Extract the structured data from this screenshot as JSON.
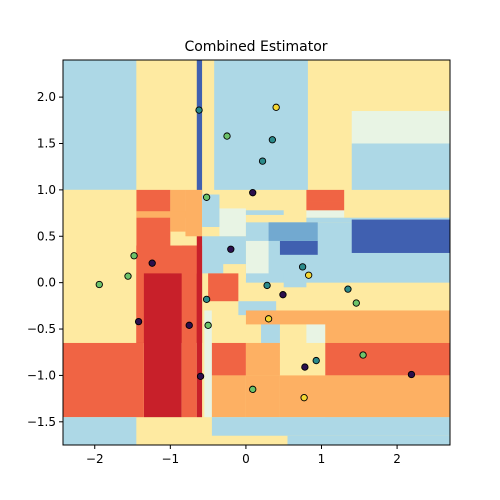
{
  "chart_data": {
    "type": "scatter",
    "title": "Combined Estimator",
    "xlabel": "",
    "ylabel": "",
    "xlim": [
      -2.42,
      2.7
    ],
    "ylim": [
      -1.75,
      2.4
    ],
    "xticks": [
      "−2",
      "−1",
      "0",
      "1",
      "2"
    ],
    "xtick_values": [
      -2,
      -1,
      0,
      1,
      2
    ],
    "yticks": [
      "−1.5",
      "−1.0",
      "−0.5",
      "0.0",
      "0.5",
      "1.0",
      "1.5",
      "2.0"
    ],
    "ytick_values": [
      -1.5,
      -1.0,
      -0.5,
      0.0,
      0.5,
      1.0,
      1.5,
      2.0
    ],
    "grid": false,
    "colors": {
      "class_0": "#2b0f4c",
      "class_1": "#2a8a8a",
      "class_2": "#6cc36a",
      "class_3": "#f5d833",
      "region_red_dark": "#c8202a",
      "region_red": "#f06444",
      "region_orange": "#fdb063",
      "region_yellow": "#feeaa1",
      "region_pale": "#e8f4e4",
      "region_lightblue": "#add8e6",
      "region_midblue": "#72a9d0",
      "region_darkblue": "#4060b0"
    },
    "decision_regions": [
      {
        "x0": -2.42,
        "x1": 2.7,
        "y0": -1.75,
        "y1": 2.4,
        "color": "region_yellow"
      },
      {
        "x0": -2.42,
        "x1": -1.45,
        "y0": 1.0,
        "y1": 2.4,
        "color": "region_lightblue"
      },
      {
        "x0": -0.42,
        "x1": 0.82,
        "y0": 1.0,
        "y1": 2.4,
        "color": "region_lightblue"
      },
      {
        "x0": -0.65,
        "x1": -0.58,
        "y0": 0.95,
        "y1": 2.4,
        "color": "region_darkblue"
      },
      {
        "x0": 1.4,
        "x1": 2.7,
        "y0": 1.5,
        "y1": 1.85,
        "color": "region_pale"
      },
      {
        "x0": 1.4,
        "x1": 2.7,
        "y0": 1.0,
        "y1": 1.5,
        "color": "region_lightblue"
      },
      {
        "x0": -1.45,
        "x1": -1.0,
        "y0": 0.4,
        "y1": 1.0,
        "color": "region_red"
      },
      {
        "x0": -1.0,
        "x1": -0.8,
        "y0": 0.55,
        "y1": 1.0,
        "color": "region_orange"
      },
      {
        "x0": -2.42,
        "x1": -1.45,
        "y0": 0.7,
        "y1": 0.77,
        "color": "region_orange"
      },
      {
        "x0": -1.45,
        "x1": -0.8,
        "y0": 0.7,
        "y1": 0.77,
        "color": "region_orange"
      },
      {
        "x0": -0.8,
        "x1": -0.58,
        "y0": 0.5,
        "y1": 1.0,
        "color": "region_orange"
      },
      {
        "x0": -0.58,
        "x1": -0.35,
        "y0": 0.6,
        "y1": 0.95,
        "color": "region_lightblue"
      },
      {
        "x0": -0.35,
        "x1": 0.0,
        "y0": 0.5,
        "y1": 0.8,
        "color": "region_pale"
      },
      {
        "x0": 0.0,
        "x1": 0.5,
        "y0": 0.73,
        "y1": 0.78,
        "color": "region_lightblue"
      },
      {
        "x0": 0.8,
        "x1": 1.3,
        "y0": 0.7,
        "y1": 0.78,
        "color": "region_pale"
      },
      {
        "x0": 0.8,
        "x1": 1.3,
        "y0": 0.78,
        "y1": 0.88,
        "color": "region_red"
      },
      {
        "x0": 0.8,
        "x1": 1.3,
        "y0": 0.88,
        "y1": 1.0,
        "color": "region_red"
      },
      {
        "x0": 0.8,
        "x1": 2.7,
        "y0": 0.65,
        "y1": 0.7,
        "color": "region_lightblue"
      },
      {
        "x0": 0.0,
        "x1": 2.7,
        "y0": 0.0,
        "y1": 0.65,
        "color": "region_lightblue"
      },
      {
        "x0": 1.4,
        "x1": 2.7,
        "y0": 0.32,
        "y1": 0.68,
        "color": "region_darkblue"
      },
      {
        "x0": 0.45,
        "x1": 0.95,
        "y0": 0.3,
        "y1": 0.45,
        "color": "region_darkblue"
      },
      {
        "x0": 0.3,
        "x1": 0.95,
        "y0": 0.45,
        "y1": 0.65,
        "color": "region_midblue"
      },
      {
        "x0": 0.0,
        "x1": 0.3,
        "y0": 0.1,
        "y1": 0.45,
        "color": "region_pale"
      },
      {
        "x0": -0.58,
        "x1": 0.0,
        "y0": 0.1,
        "y1": 0.5,
        "color": "region_lightblue"
      },
      {
        "x0": -0.3,
        "x1": 0.0,
        "y0": 0.05,
        "y1": 0.2,
        "color": "region_yellow"
      },
      {
        "x0": -1.45,
        "x1": -0.58,
        "y0": 0.1,
        "y1": 0.4,
        "color": "region_red"
      },
      {
        "x0": -1.45,
        "x1": -0.58,
        "y0": -0.65,
        "y1": 0.1,
        "color": "region_red_dark"
      },
      {
        "x0": -1.45,
        "x1": -1.0,
        "y0": -0.65,
        "y1": 0.1,
        "color": "region_red_dark"
      },
      {
        "x0": -2.42,
        "x1": -1.45,
        "y0": -0.65,
        "y1": 1.0,
        "color": "region_yellow"
      },
      {
        "x0": -1.45,
        "x1": -1.0,
        "y0": -0.65,
        "y1": 0.4,
        "color": "region_red"
      },
      {
        "x0": -1.35,
        "x1": -0.85,
        "y0": -1.45,
        "y1": 0.1,
        "color": "region_red_dark"
      },
      {
        "x0": -0.85,
        "x1": -0.65,
        "y0": -1.45,
        "y1": 0.4,
        "color": "region_red"
      },
      {
        "x0": -0.65,
        "x1": -0.58,
        "y0": -1.45,
        "y1": 0.5,
        "color": "region_red_dark"
      },
      {
        "x0": -2.42,
        "x1": -1.35,
        "y0": -1.45,
        "y1": -0.65,
        "color": "region_red"
      },
      {
        "x0": -0.55,
        "x1": -0.45,
        "y0": -1.45,
        "y1": -0.3,
        "color": "region_pale"
      },
      {
        "x0": -0.45,
        "x1": 0.3,
        "y0": -0.65,
        "y1": -0.3,
        "color": "region_yellow"
      },
      {
        "x0": -0.5,
        "x1": -0.1,
        "y0": -0.2,
        "y1": 0.1,
        "color": "region_red"
      },
      {
        "x0": -0.1,
        "x1": 0.4,
        "y0": -0.35,
        "y1": -0.2,
        "color": "region_lightblue"
      },
      {
        "x0": 0.2,
        "x1": 0.45,
        "y0": -0.65,
        "y1": -0.35,
        "color": "region_lightblue"
      },
      {
        "x0": 0.8,
        "x1": 1.05,
        "y0": -0.65,
        "y1": -0.35,
        "color": "region_pale"
      },
      {
        "x0": 0.5,
        "x1": 0.8,
        "y0": -0.05,
        "y1": 0.1,
        "color": "region_lightblue"
      },
      {
        "x0": 0.0,
        "x1": 2.7,
        "y0": -0.45,
        "y1": -0.3,
        "color": "region_orange"
      },
      {
        "x0": 1.05,
        "x1": 2.7,
        "y0": -0.65,
        "y1": -0.3,
        "color": "region_orange"
      },
      {
        "x0": -0.45,
        "x1": 0.0,
        "y0": -1.0,
        "y1": -0.65,
        "color": "region_red"
      },
      {
        "x0": 0.0,
        "x1": 0.45,
        "y0": -1.0,
        "y1": -0.65,
        "color": "region_orange"
      },
      {
        "x0": 1.05,
        "x1": 2.7,
        "y0": -1.0,
        "y1": -0.65,
        "color": "region_red"
      },
      {
        "x0": -0.45,
        "x1": 0.0,
        "y0": -1.45,
        "y1": -1.0,
        "color": "region_orange"
      },
      {
        "x0": 0.45,
        "x1": 2.7,
        "y0": -1.45,
        "y1": -1.0,
        "color": "region_orange"
      },
      {
        "x0": 0.0,
        "x1": 0.45,
        "y0": -1.45,
        "y1": -1.0,
        "color": "region_orange"
      },
      {
        "x0": 1.05,
        "x1": 2.7,
        "y0": -1.45,
        "y1": -1.0,
        "color": "region_orange"
      },
      {
        "x0": -2.42,
        "x1": -1.45,
        "y0": -1.75,
        "y1": -1.45,
        "color": "region_lightblue"
      },
      {
        "x0": -0.55,
        "x1": 0.55,
        "y0": -1.75,
        "y1": -1.65,
        "color": "region_yellow"
      },
      {
        "x0": -0.45,
        "x1": 2.7,
        "y0": -1.65,
        "y1": -1.45,
        "color": "region_lightblue"
      },
      {
        "x0": 0.55,
        "x1": 2.7,
        "y0": -1.75,
        "y1": -1.65,
        "color": "region_lightblue"
      }
    ],
    "points": [
      {
        "x": -0.62,
        "y": 1.86,
        "class": 1
      },
      {
        "x": 0.4,
        "y": 1.89,
        "class": 3
      },
      {
        "x": -0.25,
        "y": 1.58,
        "class": 2
      },
      {
        "x": 0.35,
        "y": 1.54,
        "class": 1
      },
      {
        "x": 0.22,
        "y": 1.31,
        "class": 1
      },
      {
        "x": 0.09,
        "y": 0.97,
        "class": 0
      },
      {
        "x": -0.52,
        "y": 0.92,
        "class": 2
      },
      {
        "x": -0.2,
        "y": 0.36,
        "class": 0
      },
      {
        "x": -1.48,
        "y": 0.29,
        "class": 2
      },
      {
        "x": -1.24,
        "y": 0.21,
        "class": 0
      },
      {
        "x": -1.56,
        "y": 0.07,
        "class": 2
      },
      {
        "x": -1.94,
        "y": -0.02,
        "class": 2
      },
      {
        "x": 0.75,
        "y": 0.17,
        "class": 1
      },
      {
        "x": 0.83,
        "y": 0.08,
        "class": 3
      },
      {
        "x": 0.28,
        "y": -0.03,
        "class": 1
      },
      {
        "x": 0.49,
        "y": -0.13,
        "class": 0
      },
      {
        "x": 1.35,
        "y": -0.07,
        "class": 1
      },
      {
        "x": 1.46,
        "y": -0.22,
        "class": 2
      },
      {
        "x": -0.52,
        "y": -0.18,
        "class": 1
      },
      {
        "x": -1.42,
        "y": -0.42,
        "class": 0
      },
      {
        "x": -0.75,
        "y": -0.46,
        "class": 0
      },
      {
        "x": -0.5,
        "y": -0.46,
        "class": 2
      },
      {
        "x": 0.3,
        "y": -0.39,
        "class": 3
      },
      {
        "x": 0.93,
        "y": -0.84,
        "class": 1
      },
      {
        "x": 0.78,
        "y": -0.91,
        "class": 0
      },
      {
        "x": 1.55,
        "y": -0.78,
        "class": 2
      },
      {
        "x": 2.19,
        "y": -0.99,
        "class": 0
      },
      {
        "x": -0.6,
        "y": -1.01,
        "class": 0
      },
      {
        "x": 0.09,
        "y": -1.15,
        "class": 2
      },
      {
        "x": 0.77,
        "y": -1.24,
        "class": 3
      }
    ]
  }
}
